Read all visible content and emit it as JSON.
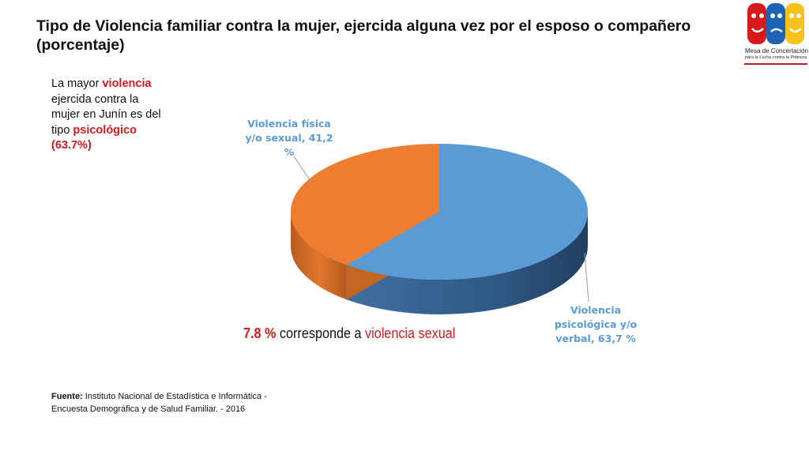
{
  "title": "Tipo de Violencia familiar contra la mujer, ejercida alguna vez por el esposo o compañero (porcentaje)",
  "logo": {
    "name": "Mesa de Concertación",
    "subtitle": "para la Lucha contra la Pobreza",
    "colors": [
      "#d7191c",
      "#1f63b5",
      "#f6c21b"
    ]
  },
  "side_note": {
    "part1": "La mayor ",
    "highlight1": "violencia",
    "part2": " ejercida contra la mujer en Junín es del tipo ",
    "highlight2": "psicológico (63.7%)"
  },
  "chart_data": {
    "type": "pie",
    "three_d": true,
    "slices": [
      {
        "label_lines": [
          "Violencia",
          "psicológica y/o",
          "verbal, 63,7 %"
        ],
        "value": 63.7,
        "color": "#5b9bd5"
      },
      {
        "label_lines": [
          "Violencia física",
          "y/o sexual, 41,2",
          "%"
        ],
        "value": 41.2,
        "color": "#ed7d31"
      }
    ],
    "label_color": "#5b9bd5"
  },
  "note": {
    "value": "7.8 %",
    "text": " corresponde a ",
    "emphasis": "violencia sexual"
  },
  "source": {
    "label": "Fuente:",
    "text": " Instituto Nacional de Estadística e Informática - Encuesta Demográfica y de Salud Familiar. - 2016"
  }
}
